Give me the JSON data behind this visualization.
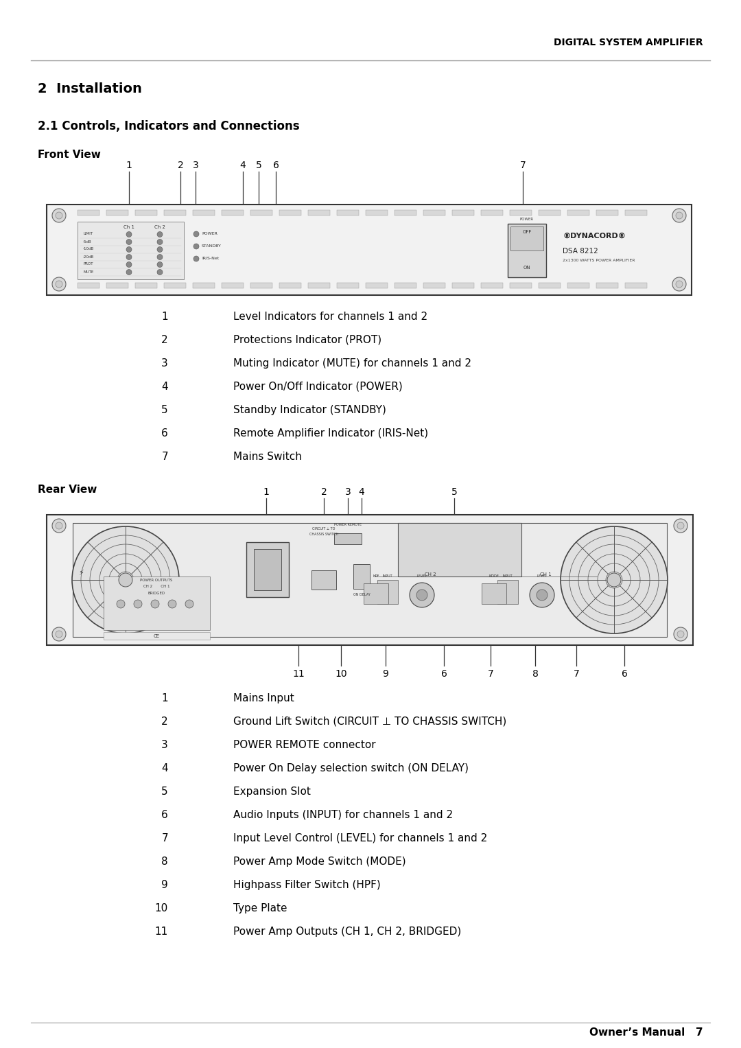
{
  "page_title": "DIGITAL SYSTEM AMPLIFIER",
  "footer": "Owner’s Manual   7",
  "section_title": "2  Installation",
  "subsection_title": "2.1 Controls, Indicators and Connections",
  "front_view_label": "Front View",
  "rear_view_label": "Rear View",
  "front_items": [
    [
      "1",
      "Level Indicators for channels 1 and 2"
    ],
    [
      "2",
      "Protections Indicator (PROT)"
    ],
    [
      "3",
      "Muting Indicator (MUTE) for channels 1 and 2"
    ],
    [
      "4",
      "Power On/Off Indicator (POWER)"
    ],
    [
      "5",
      "Standby Indicator (STANDBY)"
    ],
    [
      "6",
      "Remote Amplifier Indicator (IRIS-Net)"
    ],
    [
      "7",
      "Mains Switch"
    ]
  ],
  "rear_items": [
    [
      "1",
      "Mains Input"
    ],
    [
      "2",
      "Ground Lift Switch (CIRCUIT ⊥ TO CHASSIS SWITCH)"
    ],
    [
      "3",
      "POWER REMOTE connector"
    ],
    [
      "4",
      "Power On Delay selection switch (ON DELAY)"
    ],
    [
      "5",
      "Expansion Slot"
    ],
    [
      "6",
      "Audio Inputs (INPUT) for channels 1 and 2"
    ],
    [
      "7",
      "Input Level Control (LEVEL) for channels 1 and 2"
    ],
    [
      "8",
      "Power Amp Mode Switch (MODE)"
    ],
    [
      "9",
      "Highpass Filter Switch (HPF)"
    ],
    [
      "10",
      "Type Plate"
    ],
    [
      "11",
      "Power Amp Outputs (CH 1, CH 2, BRIDGED)"
    ]
  ],
  "bg_color": "#ffffff",
  "text_color": "#000000",
  "line_color": "#333333",
  "header_line_color": "#888888"
}
